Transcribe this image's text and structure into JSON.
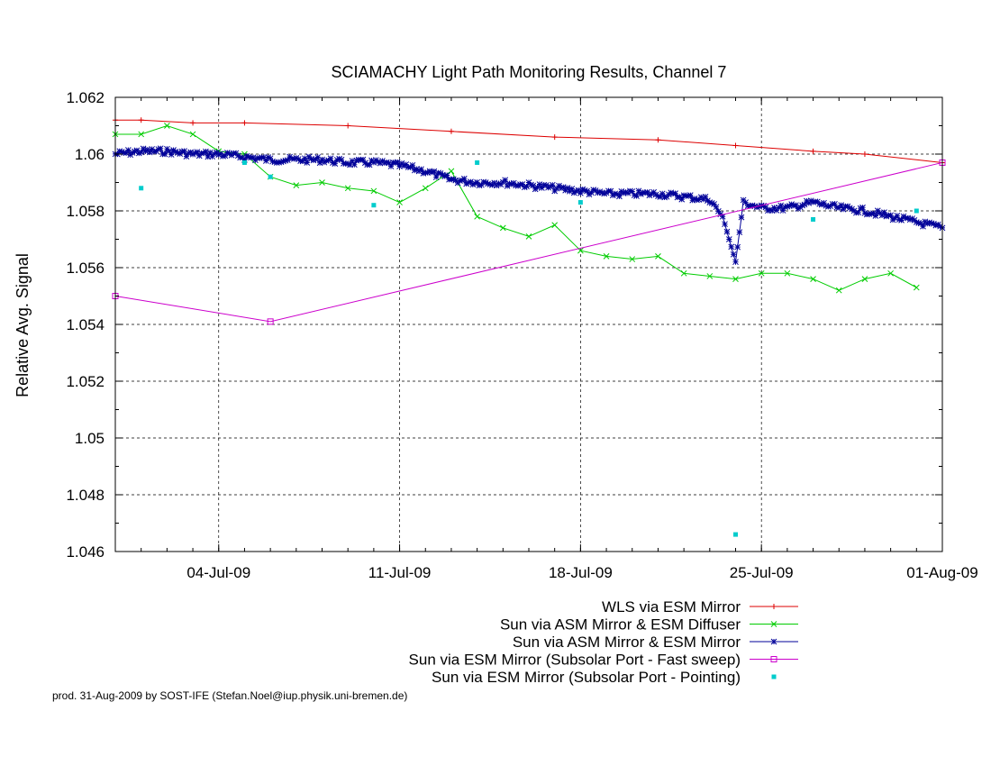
{
  "chart_data": {
    "type": "line",
    "title": "SCIAMACHY Light Path Monitoring Results, Channel 7",
    "xlabel": "",
    "ylabel": "Relative Avg. Signal",
    "x_axis_type": "date",
    "xlim": [
      "2009-06-30",
      "2009-08-01"
    ],
    "ylim": [
      1.046,
      1.062
    ],
    "yticks": [
      1.046,
      1.048,
      1.05,
      1.052,
      1.054,
      1.056,
      1.058,
      1.06,
      1.062
    ],
    "ytick_labels": [
      "1.046",
      "1.048",
      "1.05",
      "1.052",
      "1.054",
      "1.056",
      "1.058",
      "1.06",
      "1.062"
    ],
    "xticks": [
      "2009-07-04",
      "2009-07-11",
      "2009-07-18",
      "2009-07-25",
      "2009-08-01"
    ],
    "xtick_labels": [
      "04-Jul-09",
      "11-Jul-09",
      "18-Jul-09",
      "25-Jul-09",
      "01-Aug-09"
    ],
    "grid": true,
    "legend_position": "below",
    "series": [
      {
        "name": "WLS via ESM Mirror",
        "color": "#dd0000",
        "style": "line-points",
        "marker": "plus",
        "points": [
          [
            "2009-06-30",
            1.0612
          ],
          [
            "2009-07-01",
            1.0612
          ],
          [
            "2009-07-03",
            1.0611
          ],
          [
            "2009-07-05",
            1.0611
          ],
          [
            "2009-07-09",
            1.061
          ],
          [
            "2009-07-13",
            1.0608
          ],
          [
            "2009-07-17",
            1.0606
          ],
          [
            "2009-07-21",
            1.0605
          ],
          [
            "2009-07-24",
            1.0603
          ],
          [
            "2009-07-27",
            1.0601
          ],
          [
            "2009-07-29",
            1.06
          ],
          [
            "2009-08-01",
            1.0597
          ]
        ]
      },
      {
        "name": "Sun via ASM Mirror & ESM Diffuser",
        "color": "#00cc00",
        "style": "line-points",
        "marker": "cross",
        "points": [
          [
            "2009-06-30",
            1.0607
          ],
          [
            "2009-07-01",
            1.0607
          ],
          [
            "2009-07-02",
            1.061
          ],
          [
            "2009-07-03",
            1.0607
          ],
          [
            "2009-07-04",
            1.0601
          ],
          [
            "2009-07-05",
            1.06
          ],
          [
            "2009-07-06",
            1.0592
          ],
          [
            "2009-07-07",
            1.0589
          ],
          [
            "2009-07-08",
            1.059
          ],
          [
            "2009-07-09",
            1.0588
          ],
          [
            "2009-07-10",
            1.0587
          ],
          [
            "2009-07-11",
            1.0583
          ],
          [
            "2009-07-12",
            1.0588
          ],
          [
            "2009-07-13",
            1.0594
          ],
          [
            "2009-07-14",
            1.0578
          ],
          [
            "2009-07-15",
            1.0574
          ],
          [
            "2009-07-16",
            1.0571
          ],
          [
            "2009-07-17",
            1.0575
          ],
          [
            "2009-07-18",
            1.0566
          ],
          [
            "2009-07-19",
            1.0564
          ],
          [
            "2009-07-20",
            1.0563
          ],
          [
            "2009-07-21",
            1.0564
          ],
          [
            "2009-07-22",
            1.0558
          ],
          [
            "2009-07-23",
            1.0557
          ],
          [
            "2009-07-24",
            1.0556
          ],
          [
            "2009-07-25",
            1.0558
          ],
          [
            "2009-07-26",
            1.0558
          ],
          [
            "2009-07-27",
            1.0556
          ],
          [
            "2009-07-28",
            1.0552
          ],
          [
            "2009-07-29",
            1.0556
          ],
          [
            "2009-07-30",
            1.0558
          ],
          [
            "2009-07-31",
            1.0553
          ]
        ]
      },
      {
        "name": "Sun via ASM Mirror & ESM Mirror",
        "color": "#000099",
        "style": "line-points-dense",
        "marker": "star",
        "points": [
          [
            "2009-06-30",
            1.06
          ],
          [
            "2009-07-01",
            1.0601
          ],
          [
            "2009-07-02",
            1.0601
          ],
          [
            "2009-07-03",
            1.06
          ],
          [
            "2009-07-04",
            1.06
          ],
          [
            "2009-07-05",
            1.0599
          ],
          [
            "2009-07-06",
            1.0598
          ],
          [
            "2009-07-07",
            1.0598
          ],
          [
            "2009-07-08",
            1.0598
          ],
          [
            "2009-07-09",
            1.0597
          ],
          [
            "2009-07-10",
            1.0597
          ],
          [
            "2009-07-11",
            1.0596
          ],
          [
            "2009-07-12",
            1.0594
          ],
          [
            "2009-07-13",
            1.0591
          ],
          [
            "2009-07-14",
            1.059
          ],
          [
            "2009-07-15",
            1.059
          ],
          [
            "2009-07-16",
            1.0589
          ],
          [
            "2009-07-17",
            1.0588
          ],
          [
            "2009-07-18",
            1.0587
          ],
          [
            "2009-07-19",
            1.0586
          ],
          [
            "2009-07-20",
            1.0586
          ],
          [
            "2009-07-21",
            1.0586
          ],
          [
            "2009-07-22",
            1.0585
          ],
          [
            "2009-07-23",
            1.0584
          ],
          [
            "2009-07-23.5",
            1.0578
          ],
          [
            "2009-07-24",
            1.0562
          ],
          [
            "2009-07-24.3",
            1.0583
          ],
          [
            "2009-07-25",
            1.0581
          ],
          [
            "2009-07-26",
            1.0581
          ],
          [
            "2009-07-27",
            1.0583
          ],
          [
            "2009-07-28",
            1.0581
          ],
          [
            "2009-07-29",
            1.058
          ],
          [
            "2009-07-30",
            1.0578
          ],
          [
            "2009-07-31",
            1.0576
          ],
          [
            "2009-08-01",
            1.0574
          ]
        ]
      },
      {
        "name": "Sun via ESM Mirror (Subsolar Port - Fast sweep)",
        "color": "#cc00cc",
        "style": "line-points",
        "marker": "square",
        "points": [
          [
            "2009-06-30",
            1.055
          ],
          [
            "2009-07-06",
            1.0541
          ],
          [
            "2009-08-01",
            1.0597
          ]
        ]
      },
      {
        "name": "Sun via ESM Mirror (Subsolar Port - Pointing)",
        "color": "#00cccc",
        "style": "points",
        "marker": "filled-square",
        "points": [
          [
            "2009-07-01",
            1.0588
          ],
          [
            "2009-07-05",
            1.0597
          ],
          [
            "2009-07-06",
            1.0592
          ],
          [
            "2009-07-10",
            1.0582
          ],
          [
            "2009-07-14",
            1.0597
          ],
          [
            "2009-07-18",
            1.0583
          ],
          [
            "2009-07-24",
            1.0466
          ],
          [
            "2009-07-27",
            1.0577
          ],
          [
            "2009-07-31",
            1.058
          ]
        ]
      }
    ]
  },
  "footer_text": "prod. 31-Aug-2009 by SOST-IFE (Stefan.Noel@iup.physik.uni-bremen.de)"
}
